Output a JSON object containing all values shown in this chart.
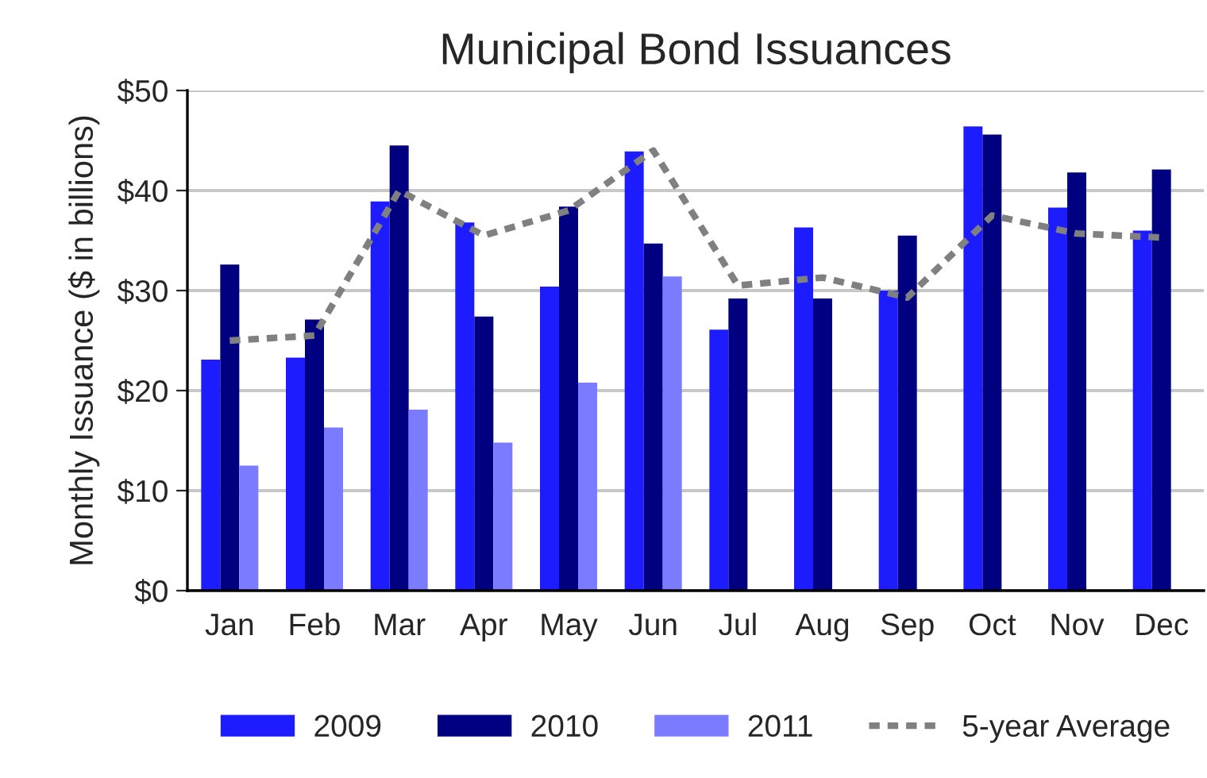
{
  "chart_data": {
    "type": "bar",
    "title": "Municipal Bond Issuances",
    "ylabel": "Monthly Issuance ($ in billions)",
    "categories": [
      "Jan",
      "Feb",
      "Mar",
      "Apr",
      "May",
      "Jun",
      "Jul",
      "Aug",
      "Sep",
      "Oct",
      "Nov",
      "Dec"
    ],
    "series": [
      {
        "name": "2009",
        "color": "#1c1cff",
        "values": [
          23.1,
          23.3,
          38.9,
          36.8,
          30.4,
          43.9,
          26.1,
          36.3,
          30.0,
          46.4,
          38.3,
          36.0
        ]
      },
      {
        "name": "2010",
        "color": "#000080",
        "values": [
          32.6,
          27.1,
          44.5,
          27.4,
          38.4,
          34.7,
          29.2,
          29.2,
          35.5,
          45.6,
          41.8,
          42.1
        ]
      },
      {
        "name": "2011",
        "color": "#7b7bff",
        "values": [
          12.5,
          16.3,
          18.1,
          14.8,
          20.8,
          31.4,
          null,
          null,
          null,
          null,
          null,
          null
        ]
      },
      {
        "name": "5-year Average",
        "type": "line",
        "color": "#808080",
        "line_style": "dashed",
        "values": [
          25.0,
          25.5,
          40.0,
          35.5,
          38.0,
          44.0,
          30.5,
          31.3,
          29.3,
          37.5,
          35.7,
          35.3
        ]
      }
    ],
    "ylim": [
      0,
      50
    ],
    "yticks": [
      {
        "value": 0,
        "label": "$0"
      },
      {
        "value": 10,
        "label": "$10"
      },
      {
        "value": 20,
        "label": "$20"
      },
      {
        "value": 30,
        "label": "$30"
      },
      {
        "value": 40,
        "label": "$40"
      },
      {
        "value": 50,
        "label": "$50"
      }
    ],
    "grid": "y",
    "legend": "bottom"
  }
}
